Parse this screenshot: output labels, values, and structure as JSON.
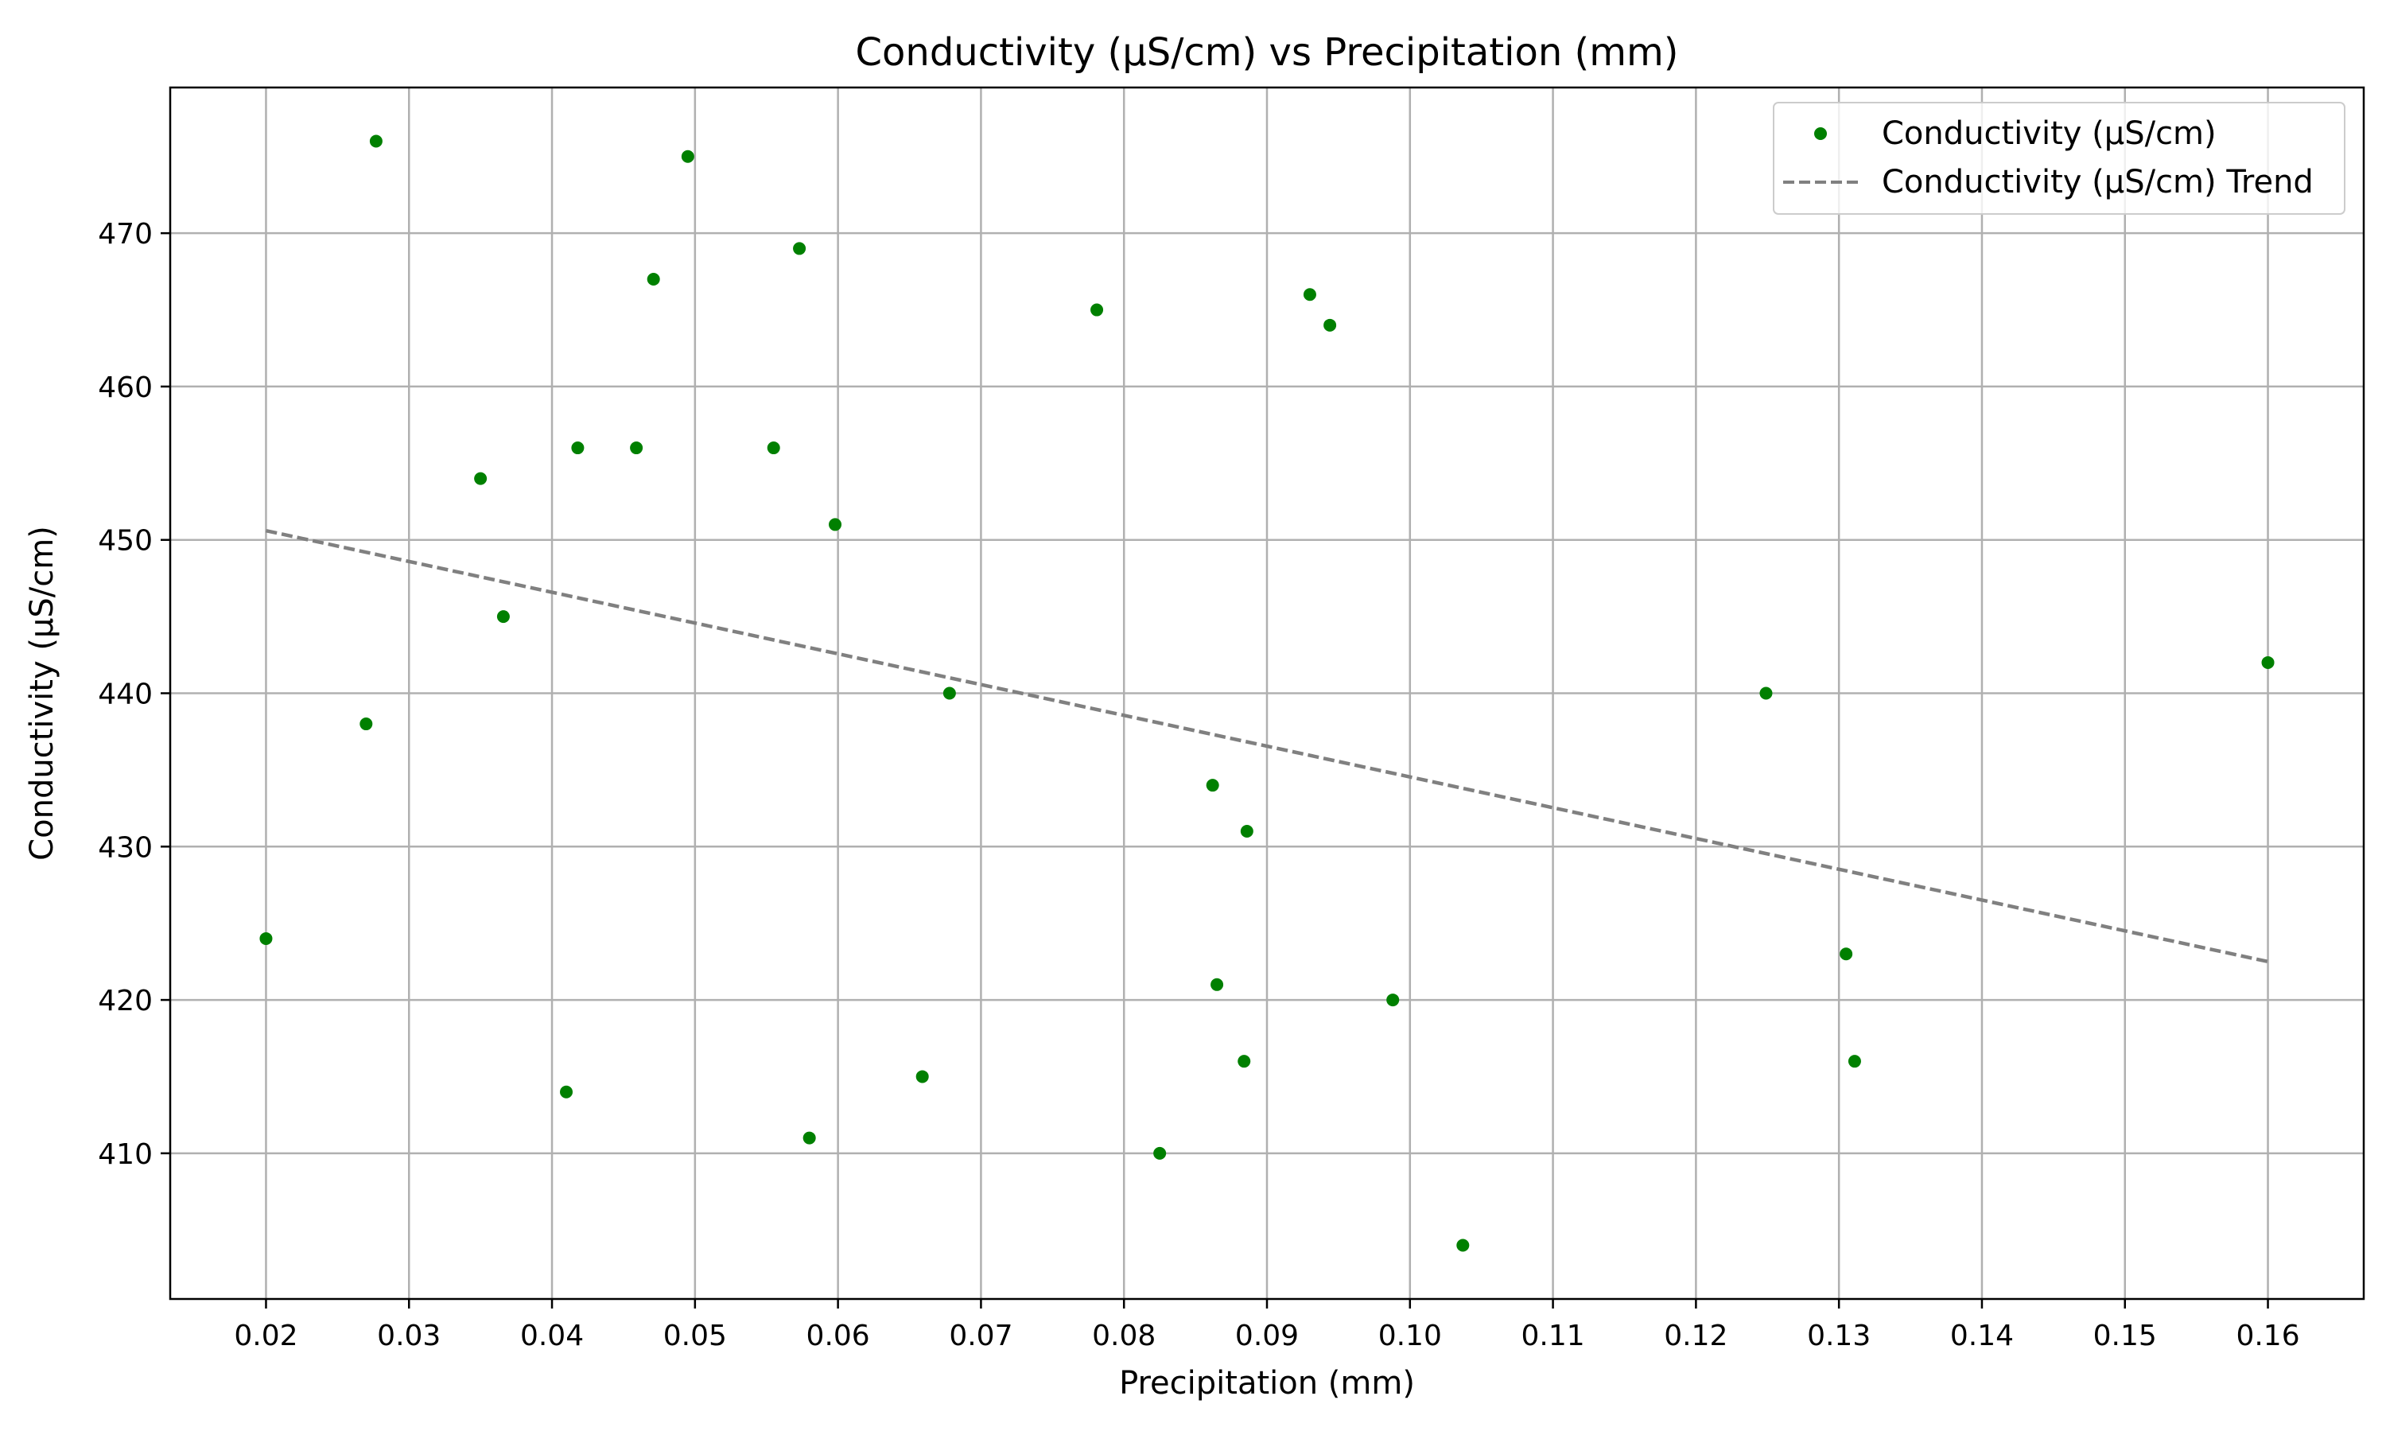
{
  "chart_data": {
    "type": "scatter",
    "title": "Conductivity (µS/cm) vs Precipitation (mm)",
    "xlabel": "Precipitation (mm)",
    "ylabel": "Conductivity (µS/cm)",
    "xlim": [
      0.0133,
      0.1667
    ],
    "ylim": [
      400.5,
      479.5
    ],
    "xticks": [
      0.02,
      0.03,
      0.04,
      0.05,
      0.06,
      0.07,
      0.08,
      0.09,
      0.1,
      0.11,
      0.12,
      0.13,
      0.14,
      0.15,
      0.16
    ],
    "xtick_labels": [
      "0.02",
      "0.03",
      "0.04",
      "0.05",
      "0.06",
      "0.07",
      "0.08",
      "0.09",
      "0.10",
      "0.11",
      "0.12",
      "0.13",
      "0.14",
      "0.15",
      "0.16"
    ],
    "yticks": [
      410,
      420,
      430,
      440,
      450,
      460,
      470
    ],
    "ytick_labels": [
      "410",
      "420",
      "430",
      "440",
      "450",
      "460",
      "470"
    ],
    "grid": true,
    "legend_position": "top-right",
    "series": [
      {
        "name": "Conductivity (µS/cm)",
        "kind": "scatter",
        "color": "#008000",
        "points": [
          {
            "x": 0.02,
            "y": 424
          },
          {
            "x": 0.027,
            "y": 438
          },
          {
            "x": 0.0277,
            "y": 476
          },
          {
            "x": 0.035,
            "y": 454
          },
          {
            "x": 0.0366,
            "y": 445
          },
          {
            "x": 0.041,
            "y": 414
          },
          {
            "x": 0.0418,
            "y": 456
          },
          {
            "x": 0.0459,
            "y": 456
          },
          {
            "x": 0.0471,
            "y": 467
          },
          {
            "x": 0.0495,
            "y": 475
          },
          {
            "x": 0.0555,
            "y": 456
          },
          {
            "x": 0.0573,
            "y": 469
          },
          {
            "x": 0.058,
            "y": 411
          },
          {
            "x": 0.0598,
            "y": 451
          },
          {
            "x": 0.0659,
            "y": 415
          },
          {
            "x": 0.0678,
            "y": 440
          },
          {
            "x": 0.0781,
            "y": 465
          },
          {
            "x": 0.0825,
            "y": 410
          },
          {
            "x": 0.0862,
            "y": 434
          },
          {
            "x": 0.0865,
            "y": 421
          },
          {
            "x": 0.0884,
            "y": 416
          },
          {
            "x": 0.0886,
            "y": 431
          },
          {
            "x": 0.093,
            "y": 466
          },
          {
            "x": 0.0944,
            "y": 464
          },
          {
            "x": 0.0988,
            "y": 420
          },
          {
            "x": 0.1037,
            "y": 404
          },
          {
            "x": 0.1249,
            "y": 440
          },
          {
            "x": 0.1305,
            "y": 423
          },
          {
            "x": 0.1311,
            "y": 416
          },
          {
            "x": 0.16,
            "y": 442
          }
        ]
      },
      {
        "name": "Conductivity (µS/cm) Trend",
        "kind": "line",
        "style": "dashed",
        "color": "#808080",
        "points": [
          {
            "x": 0.02,
            "y": 450.6
          },
          {
            "x": 0.16,
            "y": 422.5
          }
        ]
      }
    ]
  }
}
